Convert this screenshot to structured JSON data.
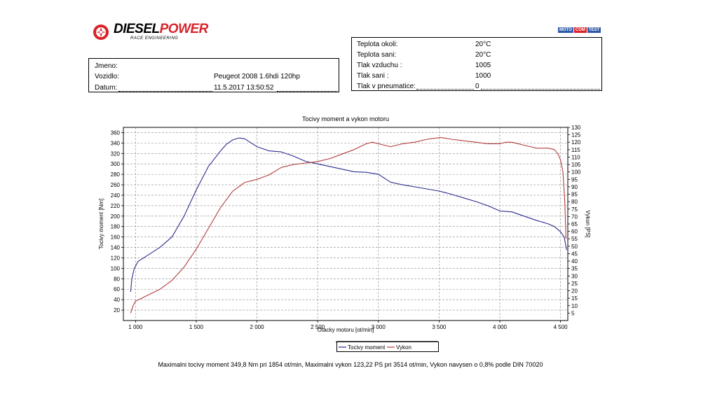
{
  "logo": {
    "brand_dark": "DIESEL",
    "brand_red": "POWER",
    "subtitle": "RACE ENGINEERING",
    "icon": "turbo-logo-icon"
  },
  "badge": {
    "part1": "MOTO",
    "part2": "COM",
    "part3": "TEST"
  },
  "vehicle": {
    "fields": [
      {
        "label": "Jmeno:",
        "value": ""
      },
      {
        "label": "Vozidlo:",
        "value": "Peugeot 2008 1.6hdi 120hp"
      },
      {
        "label": "Datum:",
        "value": "11.5.2017 13:50:52"
      }
    ]
  },
  "conditions": {
    "fields": [
      {
        "label": "Teplota okoli:",
        "value": "20°C"
      },
      {
        "label": "Teplota sani:",
        "value": "20°C"
      },
      {
        "label": "Tlak vzduchu :",
        "value": "1005"
      },
      {
        "label": "Tlak sani :",
        "value": "1000"
      },
      {
        "label": "Tlak v pneumatice:",
        "value": "0"
      }
    ]
  },
  "colors": {
    "torque": "#2b2b8f",
    "power": "#b43c3c",
    "brand_red": "#d8232a"
  },
  "chart_data": {
    "type": "line",
    "title": "Tocivy moment a vykon motoru",
    "xlabel": "Otacky motoru [ot/min]",
    "ylabel": "Tocivy moment [Nm]",
    "y2label": "Vykon [PS]",
    "xlim": [
      900,
      4560
    ],
    "ylim": [
      0,
      370
    ],
    "y2lim": [
      0,
      130
    ],
    "x_ticks": [
      1000,
      1500,
      2000,
      2500,
      3000,
      3500,
      4000,
      4500
    ],
    "x_tick_labels": [
      "1 000",
      "1 500",
      "2 000",
      "2 500",
      "3 000",
      "3 500",
      "4 000",
      "4 500"
    ],
    "y_ticks": [
      20,
      40,
      60,
      80,
      100,
      120,
      140,
      160,
      180,
      200,
      220,
      240,
      260,
      280,
      300,
      320,
      340,
      360
    ],
    "y2_ticks": [
      5,
      10,
      15,
      20,
      25,
      30,
      35,
      40,
      45,
      50,
      55,
      60,
      65,
      70,
      75,
      80,
      85,
      90,
      95,
      100,
      105,
      110,
      115,
      120,
      125,
      130
    ],
    "grid": true,
    "legend_position": "bottom",
    "series": [
      {
        "name": "Tocivy moment",
        "axis": "left",
        "color": "#2b2b8f",
        "x": [
          960,
          970,
          990,
          1020,
          1100,
          1200,
          1300,
          1400,
          1500,
          1600,
          1700,
          1750,
          1800,
          1854,
          1900,
          2000,
          2100,
          2200,
          2300,
          2400,
          2500,
          2600,
          2700,
          2800,
          2900,
          3000,
          3100,
          3200,
          3300,
          3400,
          3500,
          3600,
          3700,
          3800,
          3900,
          4000,
          4100,
          4200,
          4300,
          4400,
          4450,
          4500,
          4530,
          4550
        ],
        "y": [
          55,
          80,
          100,
          113,
          125,
          140,
          160,
          200,
          250,
          295,
          325,
          338,
          346,
          349.8,
          348,
          333,
          325,
          323,
          315,
          305,
          300,
          295,
          290,
          285,
          284,
          280,
          265,
          260,
          256,
          252,
          248,
          242,
          235,
          228,
          220,
          210,
          208,
          200,
          192,
          185,
          180,
          170,
          160,
          135
        ]
      },
      {
        "name": "Vykon",
        "axis": "right",
        "color": "#b43c3c",
        "x": [
          960,
          980,
          1000,
          1050,
          1100,
          1200,
          1300,
          1400,
          1500,
          1600,
          1700,
          1800,
          1900,
          2000,
          2100,
          2200,
          2300,
          2400,
          2500,
          2600,
          2700,
          2800,
          2900,
          2950,
          3000,
          3100,
          3200,
          3300,
          3400,
          3514,
          3600,
          3700,
          3800,
          3900,
          4000,
          4050,
          4100,
          4200,
          4300,
          4400,
          4450,
          4480,
          4500,
          4520,
          4535,
          4545
        ],
        "y": [
          5,
          10,
          13,
          15,
          17,
          21,
          27,
          36,
          48,
          62,
          76,
          87,
          93,
          95,
          98,
          103,
          105,
          106,
          107,
          109,
          112,
          115,
          119,
          120,
          119,
          117,
          119,
          120,
          122,
          123.22,
          122,
          121,
          120,
          119,
          119,
          120,
          120,
          118,
          116,
          116,
          115,
          112,
          108,
          100,
          80,
          55
        ]
      }
    ],
    "footer_note": "Maximalni tocivy moment 349,8 Nm pri 1854 ot/min,  Maximalni vykon 123,22 PS pri 3514 ot/min,  Vykon navysen o 0,8% podle DIN 70020"
  }
}
